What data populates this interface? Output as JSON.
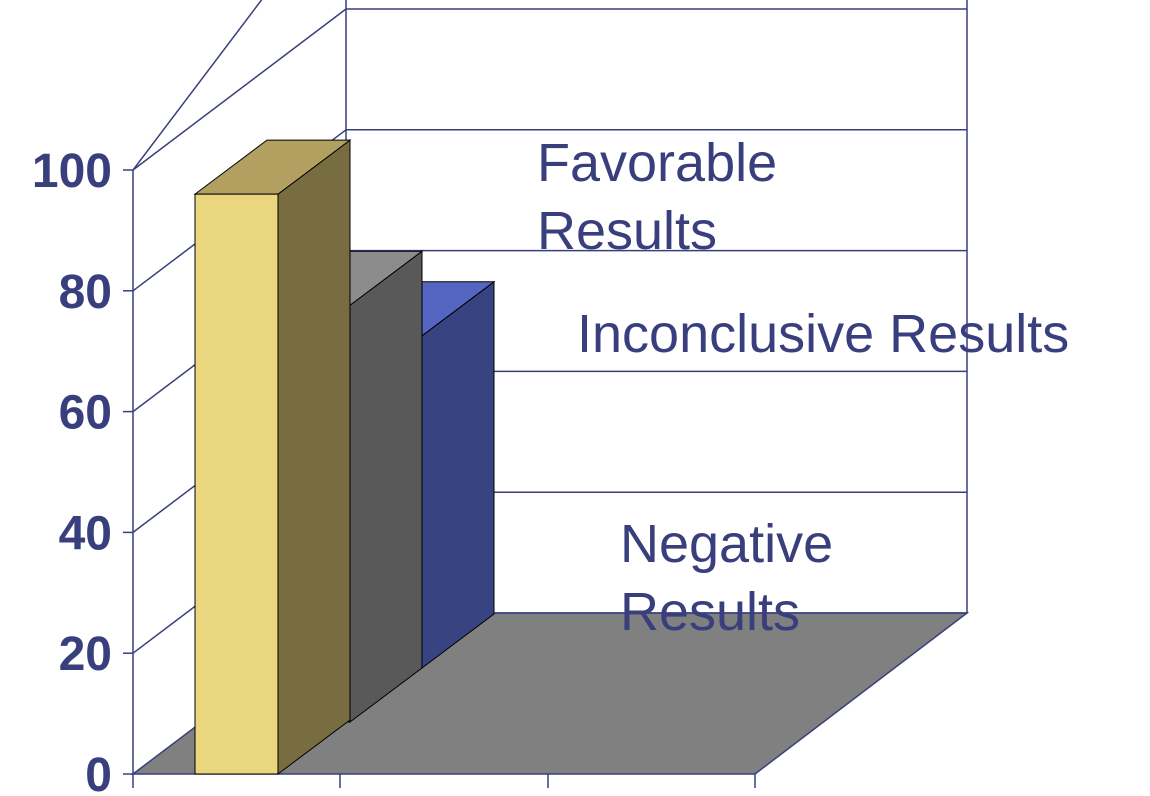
{
  "chart_data": {
    "type": "bar",
    "style": "3d-clustered-column",
    "categories": [
      "Favorable Results",
      "Inconclusive Results",
      "Negative Results"
    ],
    "category_label_lines": [
      [
        "Favorable",
        "Results"
      ],
      [
        "Inconclusive Results"
      ],
      [
        "Negative",
        "Results"
      ]
    ],
    "values": [
      96,
      69,
      55
    ],
    "ylim": [
      0,
      100
    ],
    "yticks": [
      0,
      20,
      40,
      60,
      80,
      100
    ],
    "grid": true,
    "legend": "none",
    "colors": {
      "bars": [
        {
          "front": "#ebd680",
          "side": "#786d40",
          "top": "#b2a060"
        },
        {
          "front": "#7f7f7f",
          "side": "#595959",
          "top": "#8c8c8c"
        },
        {
          "front": "#5466c0",
          "side": "#384481",
          "top": "#5466c0"
        }
      ],
      "axis": "#383f7c",
      "floor": "#808080",
      "text": "#383f7c"
    }
  }
}
